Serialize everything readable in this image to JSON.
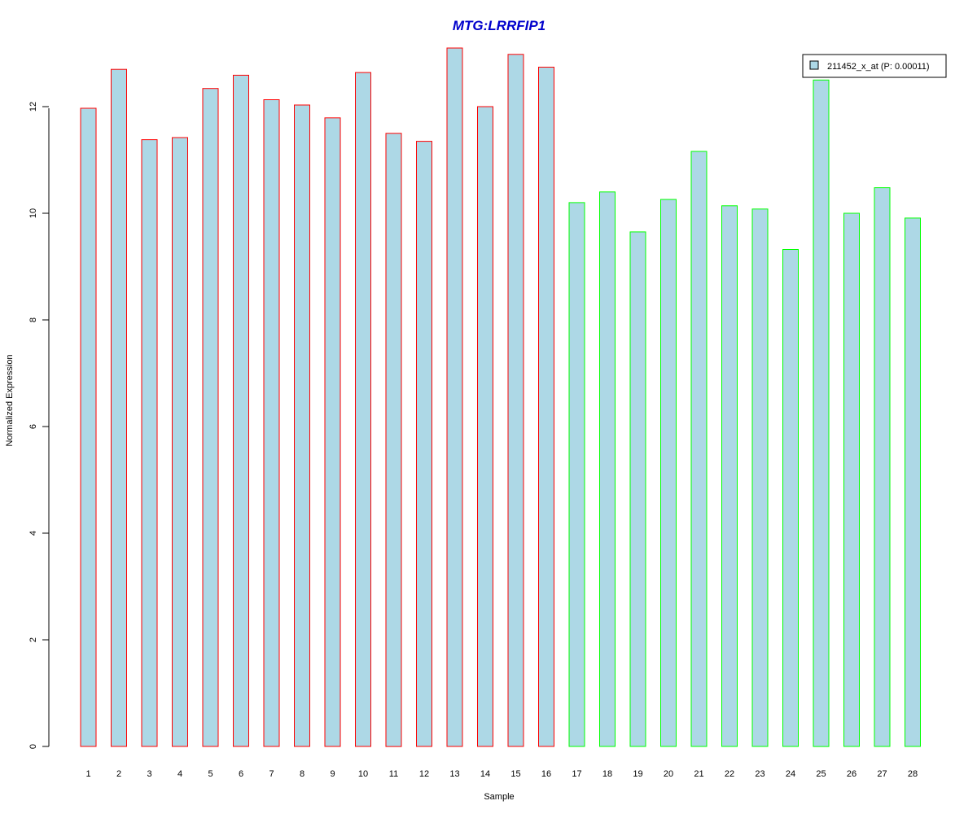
{
  "chart_data": {
    "type": "bar",
    "title": "MTG:LRRFIP1",
    "xlabel": "Sample",
    "ylabel": "Normalized Expression",
    "ylim": [
      0,
      13.1
    ],
    "yticks": [
      "0",
      "2",
      "4",
      "6",
      "8",
      "10",
      "12"
    ],
    "categories": [
      "1",
      "2",
      "3",
      "4",
      "5",
      "6",
      "7",
      "8",
      "9",
      "10",
      "11",
      "12",
      "13",
      "14",
      "15",
      "16",
      "17",
      "18",
      "19",
      "20",
      "21",
      "22",
      "23",
      "24",
      "25",
      "26",
      "27",
      "28"
    ],
    "series": [
      {
        "name": "211452_x_at (P: 0.00011)",
        "values": [
          11.97,
          12.7,
          11.38,
          11.42,
          12.34,
          12.59,
          12.13,
          12.03,
          11.79,
          12.64,
          11.5,
          11.35,
          13.1,
          12.0,
          12.98,
          12.74,
          10.2,
          10.4,
          9.65,
          10.26,
          11.16,
          10.14,
          10.08,
          9.32,
          12.5,
          10.0,
          10.48,
          9.91
        ],
        "fill": "#add8e6"
      }
    ],
    "group_border_colors": [
      "#ff0000",
      "#ff0000",
      "#ff0000",
      "#ff0000",
      "#ff0000",
      "#ff0000",
      "#ff0000",
      "#ff0000",
      "#ff0000",
      "#ff0000",
      "#ff0000",
      "#ff0000",
      "#ff0000",
      "#ff0000",
      "#ff0000",
      "#ff0000",
      "#00ff00",
      "#00ff00",
      "#00ff00",
      "#00ff00",
      "#00ff00",
      "#00ff00",
      "#00ff00",
      "#00ff00",
      "#00ff00",
      "#00ff00",
      "#00ff00",
      "#00ff00"
    ],
    "title_color": "#0000cc",
    "legend_placement": "top-right",
    "grid": false
  }
}
